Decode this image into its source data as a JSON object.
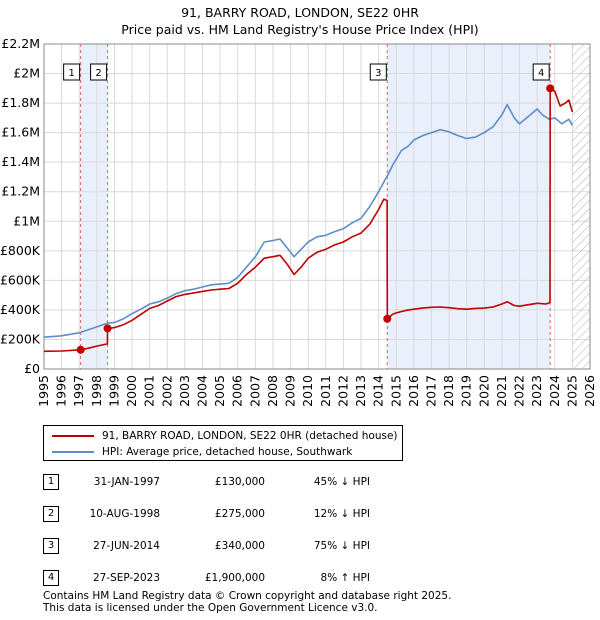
{
  "chart_data": {
    "type": "line",
    "title": "91, BARRY ROAD, LONDON, SE22 0HR",
    "subtitle": "Price paid vs. HM Land Registry's House Price Index (HPI)",
    "xlim": [
      1995,
      2026
    ],
    "ylim": [
      0,
      2200000
    ],
    "x_ticks": [
      "1995",
      "1996",
      "1997",
      "1998",
      "1999",
      "2000",
      "2001",
      "2002",
      "2003",
      "2004",
      "2005",
      "2006",
      "2007",
      "2008",
      "2009",
      "2010",
      "2011",
      "2012",
      "2013",
      "2014",
      "2015",
      "2016",
      "2017",
      "2018",
      "2019",
      "2020",
      "2021",
      "2022",
      "2023",
      "2024",
      "2025",
      "2026"
    ],
    "y_ticks": [
      {
        "value": 0,
        "label": "£0"
      },
      {
        "value": 200000,
        "label": "£200K"
      },
      {
        "value": 400000,
        "label": "£400K"
      },
      {
        "value": 600000,
        "label": "£600K"
      },
      {
        "value": 800000,
        "label": "£800K"
      },
      {
        "value": 1000000,
        "label": "£1M"
      },
      {
        "value": 1200000,
        "label": "£1.2M"
      },
      {
        "value": 1400000,
        "label": "£1.4M"
      },
      {
        "value": 1600000,
        "label": "£1.6M"
      },
      {
        "value": 1800000,
        "label": "£1.8M"
      },
      {
        "value": 2000000,
        "label": "£2M"
      },
      {
        "value": 2200000,
        "label": "£2.2M"
      }
    ],
    "grid": true,
    "hatched_future_from": 2025.0,
    "shaded_periods": [
      [
        1997.08,
        1998.61
      ],
      [
        2014.49,
        2023.74
      ]
    ],
    "series": [
      {
        "name": "HPI: Average price, detached house, Southwark",
        "color": "#5b8ec9",
        "points": [
          [
            1995.0,
            215000
          ],
          [
            1996.0,
            225000
          ],
          [
            1997.0,
            245000
          ],
          [
            1997.5,
            265000
          ],
          [
            1998.0,
            285000
          ],
          [
            1998.6,
            310000
          ],
          [
            1999.0,
            315000
          ],
          [
            1999.5,
            340000
          ],
          [
            2000.0,
            375000
          ],
          [
            2000.5,
            405000
          ],
          [
            2001.0,
            440000
          ],
          [
            2001.5,
            455000
          ],
          [
            2002.0,
            480000
          ],
          [
            2002.5,
            510000
          ],
          [
            2003.0,
            530000
          ],
          [
            2003.5,
            540000
          ],
          [
            2004.0,
            555000
          ],
          [
            2004.5,
            570000
          ],
          [
            2005.0,
            575000
          ],
          [
            2005.5,
            580000
          ],
          [
            2006.0,
            620000
          ],
          [
            2006.5,
            690000
          ],
          [
            2007.0,
            760000
          ],
          [
            2007.5,
            860000
          ],
          [
            2008.0,
            870000
          ],
          [
            2008.4,
            880000
          ],
          [
            2008.8,
            820000
          ],
          [
            2009.2,
            760000
          ],
          [
            2009.6,
            810000
          ],
          [
            2010.0,
            860000
          ],
          [
            2010.5,
            895000
          ],
          [
            2011.0,
            905000
          ],
          [
            2011.5,
            930000
          ],
          [
            2012.0,
            950000
          ],
          [
            2012.5,
            990000
          ],
          [
            2013.0,
            1020000
          ],
          [
            2013.5,
            1100000
          ],
          [
            2014.0,
            1200000
          ],
          [
            2014.5,
            1310000
          ],
          [
            2014.8,
            1380000
          ],
          [
            2015.0,
            1420000
          ],
          [
            2015.3,
            1480000
          ],
          [
            2015.7,
            1510000
          ],
          [
            2016.0,
            1550000
          ],
          [
            2016.5,
            1580000
          ],
          [
            2017.0,
            1600000
          ],
          [
            2017.5,
            1620000
          ],
          [
            2018.0,
            1605000
          ],
          [
            2018.5,
            1580000
          ],
          [
            2019.0,
            1560000
          ],
          [
            2019.5,
            1570000
          ],
          [
            2020.0,
            1600000
          ],
          [
            2020.5,
            1640000
          ],
          [
            2021.0,
            1720000
          ],
          [
            2021.3,
            1790000
          ],
          [
            2021.7,
            1700000
          ],
          [
            2022.0,
            1660000
          ],
          [
            2022.5,
            1710000
          ],
          [
            2023.0,
            1760000
          ],
          [
            2023.3,
            1720000
          ],
          [
            2023.7,
            1690000
          ],
          [
            2024.0,
            1700000
          ],
          [
            2024.4,
            1660000
          ],
          [
            2024.8,
            1690000
          ],
          [
            2025.0,
            1650000
          ]
        ]
      },
      {
        "name": "91, BARRY ROAD, LONDON, SE22 0HR (detached house)",
        "color": "#c00000",
        "points": [
          [
            1995.0,
            120000
          ],
          [
            1996.0,
            122000
          ],
          [
            1997.08,
            130000
          ],
          [
            1997.5,
            140000
          ],
          [
            1998.0,
            155000
          ],
          [
            1998.6,
            170000
          ],
          [
            1998.61,
            275000
          ],
          [
            1999.0,
            280000
          ],
          [
            1999.5,
            300000
          ],
          [
            2000.0,
            330000
          ],
          [
            2000.5,
            370000
          ],
          [
            2001.0,
            410000
          ],
          [
            2001.5,
            430000
          ],
          [
            2002.0,
            460000
          ],
          [
            2002.5,
            490000
          ],
          [
            2003.0,
            505000
          ],
          [
            2003.5,
            515000
          ],
          [
            2004.0,
            525000
          ],
          [
            2004.5,
            535000
          ],
          [
            2005.0,
            540000
          ],
          [
            2005.5,
            545000
          ],
          [
            2006.0,
            580000
          ],
          [
            2006.5,
            640000
          ],
          [
            2007.0,
            690000
          ],
          [
            2007.5,
            750000
          ],
          [
            2008.0,
            760000
          ],
          [
            2008.4,
            770000
          ],
          [
            2008.8,
            710000
          ],
          [
            2009.2,
            640000
          ],
          [
            2009.6,
            690000
          ],
          [
            2010.0,
            750000
          ],
          [
            2010.5,
            790000
          ],
          [
            2011.0,
            810000
          ],
          [
            2011.5,
            840000
          ],
          [
            2012.0,
            860000
          ],
          [
            2012.5,
            895000
          ],
          [
            2013.0,
            920000
          ],
          [
            2013.5,
            980000
          ],
          [
            2014.0,
            1080000
          ],
          [
            2014.3,
            1150000
          ],
          [
            2014.48,
            1140000
          ],
          [
            2014.49,
            340000
          ],
          [
            2014.8,
            370000
          ],
          [
            2015.0,
            380000
          ],
          [
            2015.5,
            395000
          ],
          [
            2016.0,
            405000
          ],
          [
            2016.5,
            412000
          ],
          [
            2017.0,
            418000
          ],
          [
            2017.5,
            420000
          ],
          [
            2018.0,
            415000
          ],
          [
            2018.5,
            408000
          ],
          [
            2019.0,
            405000
          ],
          [
            2019.5,
            410000
          ],
          [
            2020.0,
            412000
          ],
          [
            2020.5,
            420000
          ],
          [
            2021.0,
            440000
          ],
          [
            2021.3,
            455000
          ],
          [
            2021.7,
            430000
          ],
          [
            2022.0,
            425000
          ],
          [
            2022.5,
            435000
          ],
          [
            2023.0,
            445000
          ],
          [
            2023.5,
            440000
          ],
          [
            2023.73,
            450000
          ],
          [
            2023.74,
            1900000
          ],
          [
            2024.0,
            1880000
          ],
          [
            2024.3,
            1780000
          ],
          [
            2024.6,
            1800000
          ],
          [
            2024.8,
            1820000
          ],
          [
            2025.0,
            1740000
          ]
        ]
      }
    ],
    "markers": [
      {
        "id": "1",
        "x": 1997.08,
        "y": 130000
      },
      {
        "id": "2",
        "x": 1998.61,
        "y": 275000
      },
      {
        "id": "3",
        "x": 2014.49,
        "y": 340000
      },
      {
        "id": "4",
        "x": 2023.74,
        "y": 1900000
      }
    ]
  },
  "legend": {
    "items": [
      {
        "label": "91, BARRY ROAD, LONDON, SE22 0HR (detached house)",
        "color": "#c00000"
      },
      {
        "label": "HPI: Average price, detached house, Southwark",
        "color": "#5b8ec9"
      }
    ]
  },
  "sales": [
    {
      "num": "1",
      "date": "31-JAN-1997",
      "price": "£130,000",
      "hpi": "45% ↓ HPI"
    },
    {
      "num": "2",
      "date": "10-AUG-1998",
      "price": "£275,000",
      "hpi": "12% ↓ HPI"
    },
    {
      "num": "3",
      "date": "27-JUN-2014",
      "price": "£340,000",
      "hpi": "75% ↓ HPI"
    },
    {
      "num": "4",
      "date": "27-SEP-2023",
      "price": "£1,900,000",
      "hpi": "8% ↑ HPI"
    }
  ],
  "footer": {
    "line1": "Contains HM Land Registry data © Crown copyright and database right 2025.",
    "line2": "This data is licensed under the Open Government Licence v3.0."
  }
}
